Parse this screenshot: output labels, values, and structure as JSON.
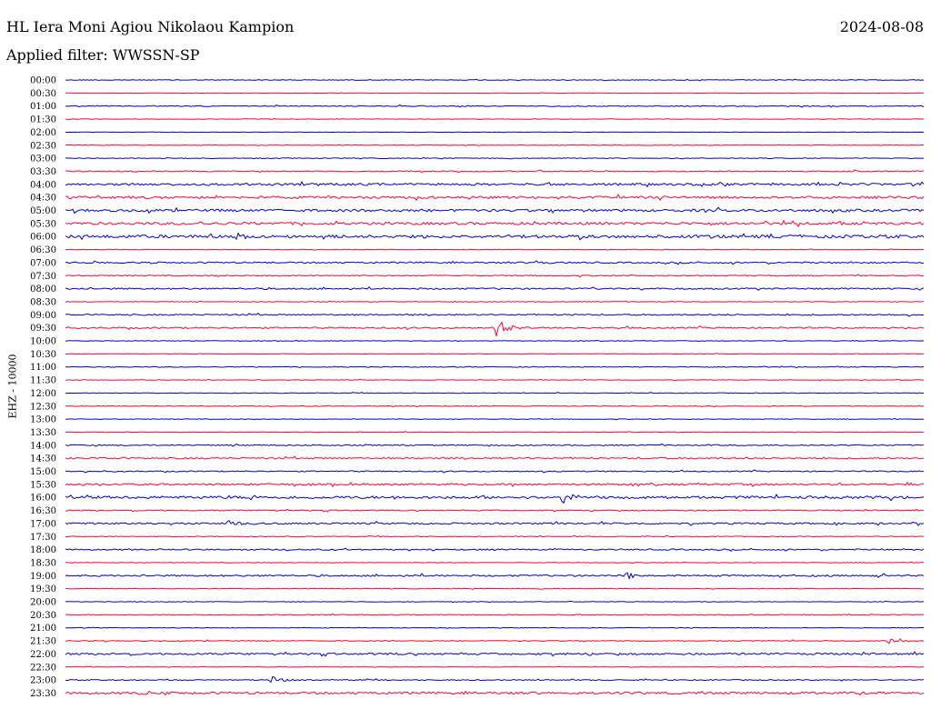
{
  "header": {
    "station": "HL Iera Moni Agiou Nikolaou Kampion",
    "date": "2024-08-08",
    "filter": "Applied filter: WWSSN-SP"
  },
  "axis": {
    "ylabel": "EHZ - 10000"
  },
  "colors": {
    "even": "#0000cc",
    "odd": "#ff0033"
  },
  "chart_data": {
    "type": "line",
    "title": "HL Iera Moni Agiou Nikolaou Kampion",
    "ylabel": "EHZ - 10000",
    "tick_labels": [
      "00:00",
      "00:30",
      "01:00",
      "01:30",
      "02:00",
      "02:30",
      "03:00",
      "03:30",
      "04:00",
      "04:30",
      "05:00",
      "05:30",
      "06:00",
      "06:30",
      "07:00",
      "07:30",
      "08:00",
      "08:30",
      "09:00",
      "09:30",
      "10:00",
      "10:30",
      "11:00",
      "11:30",
      "12:00",
      "12:30",
      "13:00",
      "13:30",
      "14:00",
      "14:30",
      "15:00",
      "15:30",
      "16:00",
      "16:30",
      "17:00",
      "17:30",
      "18:00",
      "18:30",
      "19:00",
      "19:30",
      "20:00",
      "20:30",
      "21:00",
      "21:30",
      "22:00",
      "22:30",
      "23:00",
      "23:30"
    ],
    "noise_levels": [
      0.4,
      0.2,
      0.5,
      0.3,
      0.2,
      0.3,
      0.4,
      0.6,
      1.2,
      1.3,
      1.3,
      1.4,
      1.6,
      0.3,
      0.8,
      0.6,
      0.8,
      0.3,
      0.7,
      0.8,
      0.3,
      0.3,
      0.4,
      0.3,
      0.3,
      0.4,
      0.3,
      0.3,
      0.6,
      0.8,
      0.6,
      1.0,
      1.4,
      0.6,
      0.9,
      0.4,
      0.7,
      0.3,
      0.9,
      0.3,
      0.3,
      0.4,
      0.3,
      0.5,
      1.0,
      0.3,
      0.5,
      1.2
    ],
    "events": [
      {
        "trace": "09:30",
        "x": 0.5,
        "amp": 12
      },
      {
        "trace": "16:00",
        "x": 0.58,
        "amp": 6
      },
      {
        "trace": "19:00",
        "x": 0.65,
        "amp": 4
      },
      {
        "trace": "07:00",
        "x": 0.55,
        "amp": 3
      },
      {
        "trace": "06:00",
        "x": 0.2,
        "amp": 4
      },
      {
        "trace": "23:00",
        "x": 0.24,
        "amp": 5
      },
      {
        "trace": "23:30",
        "x": 0.08,
        "amp": 4
      },
      {
        "trace": "21:30",
        "x": 0.96,
        "amp": 4
      },
      {
        "trace": "05:00",
        "x": 0.6,
        "amp": 3
      },
      {
        "trace": "17:00",
        "x": 0.19,
        "amp": 3
      }
    ]
  }
}
